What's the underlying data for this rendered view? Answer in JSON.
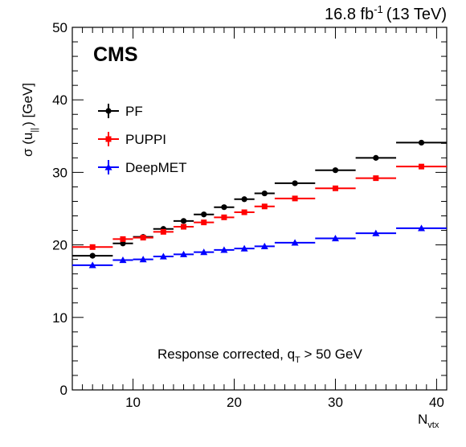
{
  "header": {
    "lumi_value": "16.8 fb",
    "lumi_exp": "-1",
    "lumi_energy": "(13 TeV)"
  },
  "experiment_label": "CMS",
  "annotation": {
    "text_main": "Response corrected, q",
    "text_sub": "T",
    "text_tail": " > 50 GeV"
  },
  "axis_labels": {
    "y_main": "σ (u",
    "y_sub": "||",
    "y_tail": ") [GeV]",
    "x_main": "N",
    "x_sub": "vtx"
  },
  "chart_data": {
    "type": "scatter",
    "xlim": [
      4,
      41
    ],
    "ylim": [
      0,
      50
    ],
    "x_ticks": [
      10,
      20,
      30,
      40
    ],
    "y_ticks": [
      0,
      10,
      20,
      30,
      40,
      50
    ],
    "legend_position": "top-left",
    "grid": false,
    "series": [
      {
        "name": "PF",
        "color": "#000000",
        "marker": "circle",
        "points": [
          {
            "x0": 4,
            "x1": 8,
            "y": 18.5
          },
          {
            "x0": 8,
            "x1": 10,
            "y": 20.2
          },
          {
            "x0": 10,
            "x1": 12,
            "y": 21.1
          },
          {
            "x0": 12,
            "x1": 14,
            "y": 22.2
          },
          {
            "x0": 14,
            "x1": 16,
            "y": 23.3
          },
          {
            "x0": 16,
            "x1": 18,
            "y": 24.2
          },
          {
            "x0": 18,
            "x1": 20,
            "y": 25.2
          },
          {
            "x0": 20,
            "x1": 22,
            "y": 26.3
          },
          {
            "x0": 22,
            "x1": 24,
            "y": 27.1
          },
          {
            "x0": 24,
            "x1": 28,
            "y": 28.5
          },
          {
            "x0": 28,
            "x1": 32,
            "y": 30.3
          },
          {
            "x0": 32,
            "x1": 36,
            "y": 32.0
          },
          {
            "x0": 36,
            "x1": 41,
            "y": 34.1
          }
        ]
      },
      {
        "name": "PUPPI",
        "color": "#ff0000",
        "marker": "square",
        "points": [
          {
            "x0": 4,
            "x1": 8,
            "y": 19.7
          },
          {
            "x0": 8,
            "x1": 10,
            "y": 20.8
          },
          {
            "x0": 10,
            "x1": 12,
            "y": 21.0
          },
          {
            "x0": 12,
            "x1": 14,
            "y": 21.8
          },
          {
            "x0": 14,
            "x1": 16,
            "y": 22.5
          },
          {
            "x0": 16,
            "x1": 18,
            "y": 23.1
          },
          {
            "x0": 18,
            "x1": 20,
            "y": 23.8
          },
          {
            "x0": 20,
            "x1": 22,
            "y": 24.5
          },
          {
            "x0": 22,
            "x1": 24,
            "y": 25.3
          },
          {
            "x0": 24,
            "x1": 28,
            "y": 26.4
          },
          {
            "x0": 28,
            "x1": 32,
            "y": 27.8
          },
          {
            "x0": 32,
            "x1": 36,
            "y": 29.2
          },
          {
            "x0": 36,
            "x1": 41,
            "y": 30.8
          }
        ]
      },
      {
        "name": "DeepMET",
        "color": "#0000ff",
        "marker": "triangle",
        "points": [
          {
            "x0": 4,
            "x1": 8,
            "y": 17.2
          },
          {
            "x0": 8,
            "x1": 10,
            "y": 17.9
          },
          {
            "x0": 10,
            "x1": 12,
            "y": 18.0
          },
          {
            "x0": 12,
            "x1": 14,
            "y": 18.4
          },
          {
            "x0": 14,
            "x1": 16,
            "y": 18.7
          },
          {
            "x0": 16,
            "x1": 18,
            "y": 19.0
          },
          {
            "x0": 18,
            "x1": 20,
            "y": 19.3
          },
          {
            "x0": 20,
            "x1": 22,
            "y": 19.5
          },
          {
            "x0": 22,
            "x1": 24,
            "y": 19.8
          },
          {
            "x0": 24,
            "x1": 28,
            "y": 20.3
          },
          {
            "x0": 28,
            "x1": 32,
            "y": 20.9
          },
          {
            "x0": 32,
            "x1": 36,
            "y": 21.6
          },
          {
            "x0": 36,
            "x1": 41,
            "y": 22.3
          }
        ]
      }
    ]
  }
}
